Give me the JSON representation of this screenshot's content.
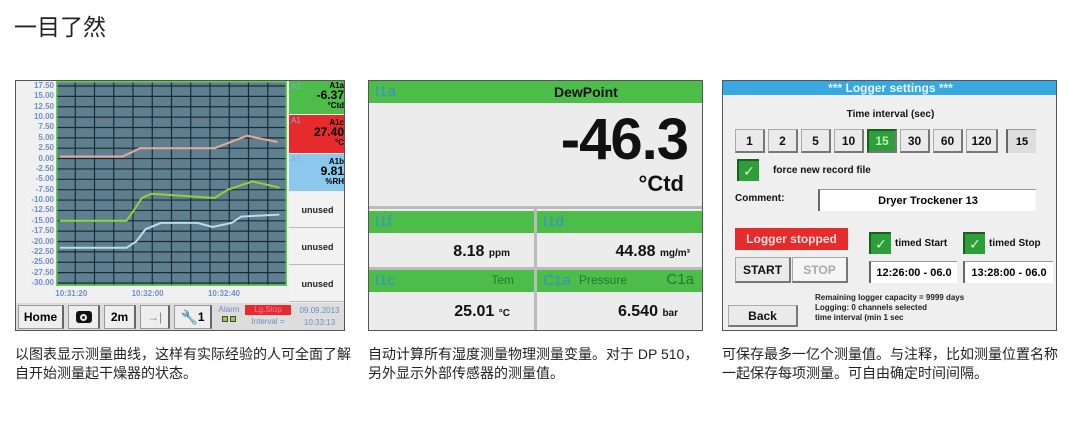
{
  "heading": "一目了然",
  "colors": {
    "accent_green": "#4cbd48",
    "alarm_red": "#e52b2b",
    "header_blue": "#3aa8e0",
    "rh_blue": "#8cc8ec"
  },
  "panel1": {
    "channels": [
      {
        "tag": "A1",
        "id": "A1a",
        "value": "-6.37",
        "unit": "°Ctd",
        "color": "#4cbd48"
      },
      {
        "tag": "A1",
        "id": "A1c",
        "value": "27.40",
        "unit": "°C",
        "color": "#e52b2b"
      },
      {
        "tag": "A1",
        "id": "A1b",
        "value": "9.81",
        "unit": "%RH",
        "color": "#8cc8ec"
      }
    ],
    "unused": [
      "unused",
      "unused",
      "unused"
    ],
    "toolbar": {
      "home": "Home",
      "camera_icon": "camera-icon",
      "span": "2m",
      "jump_icon": "arrow-to-end-icon",
      "tool_icon": "wrench-icon",
      "tool_count": "1",
      "alarm": "Alarm",
      "status": "Lg.Stop",
      "interval": "Interval =",
      "date": "09.09.2013",
      "time": "10:33:13"
    }
  },
  "chart_data": {
    "type": "line",
    "title": "",
    "xlabel": "",
    "ylabel": "",
    "ylim": [
      -30,
      20
    ],
    "yticks": [
      "17.50",
      "15.00",
      "12.50",
      "10.00",
      "7.50",
      "5.00",
      "2.50",
      "0.00",
      "-2.50",
      "-5.00",
      "-7.50",
      "-10.00",
      "-12.50",
      "-15.00",
      "-17.50",
      "-20.00",
      "-22.50",
      "-25.00",
      "-27.50",
      "-30.00"
    ],
    "xlim": [
      "10:31:12",
      "10:33:13"
    ],
    "xticks": [
      "10:31:20",
      "10:32:00",
      "10:32:40"
    ],
    "grid": true,
    "series": [
      {
        "color": "#e8a89a",
        "points": [
          [
            "10:31:14",
            0.5
          ],
          [
            "10:31:47",
            0.5
          ],
          [
            "10:31:56",
            2.5
          ],
          [
            "10:32:35",
            2.5
          ],
          [
            "10:32:52",
            5.5
          ],
          [
            "10:33:08",
            4.0
          ]
        ]
      },
      {
        "color": "#8fd23a",
        "points": [
          [
            "10:31:14",
            -15
          ],
          [
            "10:31:49",
            -15
          ],
          [
            "10:31:52",
            -13
          ],
          [
            "10:31:57",
            -9.5
          ],
          [
            "10:32:02",
            -8.5
          ],
          [
            "10:32:35",
            -9.5
          ],
          [
            "10:32:42",
            -7.5
          ],
          [
            "10:32:55",
            -5.5
          ],
          [
            "10:33:09",
            -7
          ]
        ]
      },
      {
        "color": "#b8dcf0",
        "points": [
          [
            "10:31:14",
            -21.5
          ],
          [
            "10:31:49",
            -21.5
          ],
          [
            "10:31:54",
            -20
          ],
          [
            "10:31:59",
            -17
          ],
          [
            "10:32:07",
            -15.5
          ],
          [
            "10:32:26",
            -15.5
          ],
          [
            "10:32:34",
            -16.5
          ],
          [
            "10:32:44",
            -15.5
          ],
          [
            "10:32:49",
            -14
          ],
          [
            "10:33:09",
            -13.5
          ]
        ]
      }
    ]
  },
  "panel2": {
    "main": {
      "id": "I1a",
      "name": "DewPoint",
      "value": "-46.3",
      "unit": "°Ctd"
    },
    "cells": [
      {
        "id": "I1f",
        "name": "",
        "value": "8.18",
        "unit": "ppm"
      },
      {
        "id": "I1d",
        "name": "",
        "value": "44.88",
        "unit": "mg/m³"
      },
      {
        "id": "I1c",
        "name": "Tem",
        "value": "25.01",
        "unit": "°C"
      },
      {
        "id": "C1a",
        "name": "Pressure",
        "name2": "C1a",
        "value": "6.540",
        "unit": "bar"
      }
    ]
  },
  "panel3": {
    "title": "***  Logger settings  ***",
    "interval_label": "Time interval (sec)",
    "intervals": [
      "1",
      "2",
      "5",
      "10",
      "15",
      "30",
      "60",
      "120"
    ],
    "selected_interval": "15",
    "interval_value": "15",
    "force_new": "force new record file",
    "comment_label": "Comment:",
    "comment_value": "Dryer Trockener 13",
    "status": "Logger stopped",
    "start": "START",
    "stop": "STOP",
    "timed_start": "timed Start",
    "timed_stop": "timed Stop",
    "start_time": "12:26:00 - 06.0",
    "stop_time": "13:28:00 - 06.0",
    "back": "Back",
    "info": [
      "Remaining logger capacity = 9999 days",
      "Logging: 0 channels selected",
      "time interval (min 1 sec"
    ]
  },
  "captions": [
    "以图表显示测量曲线，这样有实际经验的人可全面了解自开始测量起干燥器的状态。",
    "自动计算所有湿度测量物理测量变量。对于 DP 510，另外显示外部传感器的测量值。",
    "可保存最多一亿个测量值。与注释，比如测量位置名称一起保存每项测量。可自由确定时间间隔。"
  ]
}
